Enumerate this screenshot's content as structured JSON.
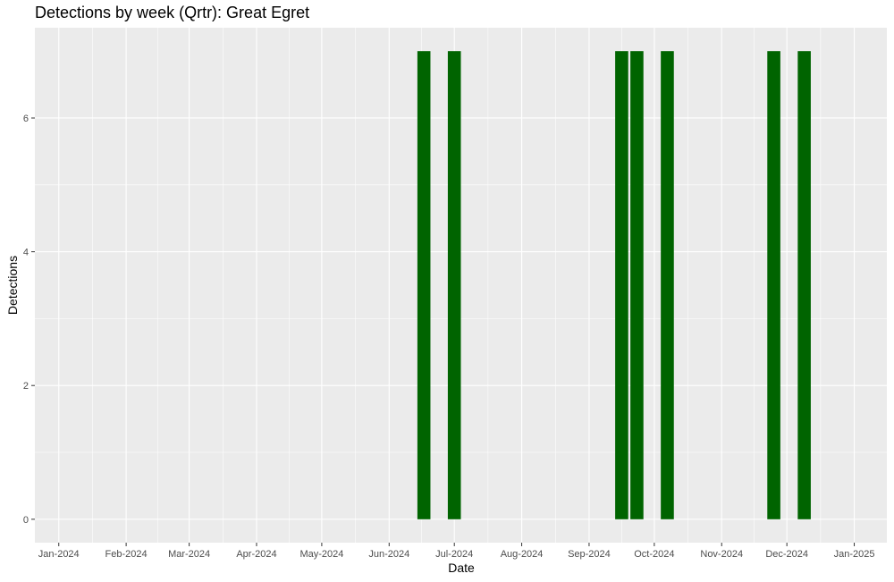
{
  "chart_data": {
    "type": "bar",
    "title": "Detections by week (Qrtr): Great Egret",
    "xlabel": "Date",
    "ylabel": "Detections",
    "x_axis": {
      "type": "date",
      "ticks": [
        "2024-01-01",
        "2024-02-01",
        "2024-03-01",
        "2024-04-01",
        "2024-05-01",
        "2024-06-01",
        "2024-07-01",
        "2024-08-01",
        "2024-09-01",
        "2024-10-01",
        "2024-11-01",
        "2024-12-01",
        "2025-01-01"
      ],
      "tick_labels": [
        "Jan-2024",
        "Feb-2024",
        "Mar-2024",
        "Apr-2024",
        "May-2024",
        "Jun-2024",
        "Jul-2024",
        "Aug-2024",
        "Sep-2024",
        "Oct-2024",
        "Nov-2024",
        "Dec-2024",
        "Jan-2025"
      ],
      "range": [
        "2023-12-21",
        "2025-01-16"
      ]
    },
    "y_axis": {
      "ticks": [
        0,
        2,
        4,
        6
      ],
      "range": [
        -0.35,
        7.35
      ]
    },
    "series": [
      {
        "x": [
          "2024-06-17",
          "2024-07-01",
          "2024-09-16",
          "2024-09-23",
          "2024-10-07",
          "2024-11-25",
          "2024-12-09"
        ],
        "values": [
          7,
          7,
          7,
          7,
          7,
          7,
          7
        ],
        "color": "#006400"
      }
    ],
    "bar_width_days": 6,
    "grid": true,
    "panel_background": "#EBEBEB",
    "grid_color": "#FFFFFF"
  }
}
